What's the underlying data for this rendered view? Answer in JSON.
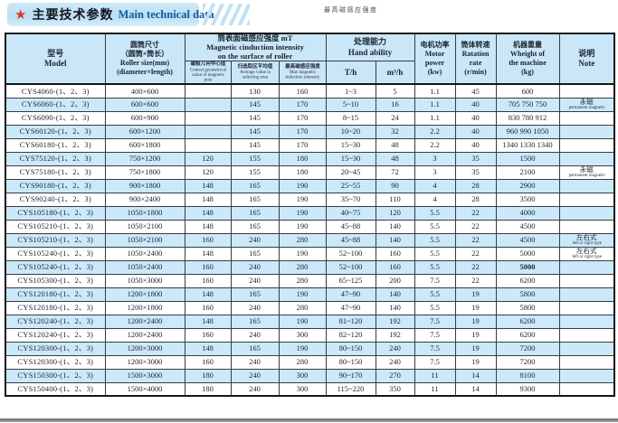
{
  "banner": {
    "star_icon": "★",
    "title_zh": "主要技术参数",
    "title_en": "Main technical data"
  },
  "floating_note": "最高磁感应强度",
  "table": {
    "headers": {
      "model": [
        "型号",
        "Model"
      ],
      "roller": [
        "圆筒尺寸",
        "（圆筒×筒长）",
        "Roller size(mm)",
        "(diameter×length)"
      ],
      "mag_group": [
        "筒表面磁感应强度 mT",
        "Magnetic cinduction intensity",
        "on the surface of roller"
      ],
      "mag_sub": [
        {
          "zh": "磁极几何中心值",
          "en_lines": [
            "Contral geometrical",
            "value of magnetic pole"
          ]
        },
        {
          "zh": "扫选取区平均值",
          "en_lines": [
            "Average value in",
            "selecting area"
          ]
        },
        {
          "zh": "最高磁感应强度",
          "en_lines": [
            "Max magnetic",
            "induction intensity"
          ]
        }
      ],
      "hand_group": [
        "处理能力",
        "Hand ability"
      ],
      "hand_sub": [
        "T/h",
        "m³/h"
      ],
      "motor": [
        "电机功率",
        "Motor",
        "power",
        "(kw)"
      ],
      "rate": [
        "筒体转速",
        "Ratation",
        "rate",
        "(r/min)"
      ],
      "weight": [
        "机器重量",
        "Wheight of",
        "the machine",
        "(kg)"
      ],
      "note": [
        "说明",
        "Note"
      ]
    },
    "rows": [
      {
        "model": "CYS4060-(1、2、3)",
        "size": "400×600",
        "mag_center": "",
        "mag_avg": "130",
        "mag_max": "160",
        "t_h": "1~3",
        "m3_h": "5",
        "power": "1.1",
        "rate": "45",
        "weight": "600",
        "weight_bold": false,
        "note_zh": "",
        "note_en": ""
      },
      {
        "model": "CYS6060-(1、2、3)",
        "size": "600×600",
        "mag_center": "",
        "mag_avg": "145",
        "mag_max": "170",
        "t_h": "5~10",
        "m3_h": "16",
        "power": "1.1",
        "rate": "40",
        "weight": "705 750 750",
        "weight_bold": false,
        "note_zh": "永磁",
        "note_en": "permanent magnetic"
      },
      {
        "model": "CYS6090-(1、2、3)",
        "size": "600×900",
        "mag_center": "",
        "mag_avg": "145",
        "mag_max": "170",
        "t_h": "8~15",
        "m3_h": "24",
        "power": "1.1",
        "rate": "40",
        "weight": "830 780 912",
        "weight_bold": false,
        "note_zh": "",
        "note_en": ""
      },
      {
        "model": "CYS60120-(1、2、3)",
        "size": "600×1200",
        "mag_center": "",
        "mag_avg": "145",
        "mag_max": "170",
        "t_h": "10~20",
        "m3_h": "32",
        "power": "2.2",
        "rate": "40",
        "weight": "960 990 1050",
        "weight_bold": false,
        "note_zh": "",
        "note_en": ""
      },
      {
        "model": "CYS60180-(1、2、3)",
        "size": "600×1800",
        "mag_center": "",
        "mag_avg": "145",
        "mag_max": "170",
        "t_h": "15~30",
        "m3_h": "48",
        "power": "2.2",
        "rate": "40",
        "weight": "1340 1330 1340",
        "weight_bold": false,
        "note_zh": "",
        "note_en": ""
      },
      {
        "model": "CYS75120-(1、2、3)",
        "size": "750×1200",
        "mag_center": "120",
        "mag_avg": "155",
        "mag_max": "180",
        "t_h": "15~30",
        "m3_h": "48",
        "power": "3",
        "rate": "35",
        "weight": "1500",
        "weight_bold": false,
        "note_zh": "",
        "note_en": ""
      },
      {
        "model": "CYS75180-(1、2、3)",
        "size": "750×1800",
        "mag_center": "120",
        "mag_avg": "155",
        "mag_max": "180",
        "t_h": "20~45",
        "m3_h": "72",
        "power": "3",
        "rate": "35",
        "weight": "2100",
        "weight_bold": false,
        "note_zh": "永磁",
        "note_en": "permanent magnetic"
      },
      {
        "model": "CYS90180-(1、2、3)",
        "size": "900×1800",
        "mag_center": "148",
        "mag_avg": "165",
        "mag_max": "190",
        "t_h": "25~55",
        "m3_h": "90",
        "power": "4",
        "rate": "28",
        "weight": "2900",
        "weight_bold": false,
        "note_zh": "",
        "note_en": ""
      },
      {
        "model": "CYS90240-(1、2、3)",
        "size": "900×2400",
        "mag_center": "148",
        "mag_avg": "165",
        "mag_max": "190",
        "t_h": "35~70",
        "m3_h": "110",
        "power": "4",
        "rate": "28",
        "weight": "3500",
        "weight_bold": false,
        "note_zh": "",
        "note_en": ""
      },
      {
        "model": "CYS105180-(1、2、3)",
        "size": "1050×1800",
        "mag_center": "148",
        "mag_avg": "165",
        "mag_max": "190",
        "t_h": "40~75",
        "m3_h": "120",
        "power": "5.5",
        "rate": "22",
        "weight": "4000",
        "weight_bold": false,
        "note_zh": "",
        "note_en": ""
      },
      {
        "model": "CYS105210-(1、2、3)",
        "size": "1050×2100",
        "mag_center": "148",
        "mag_avg": "165",
        "mag_max": "190",
        "t_h": "45~88",
        "m3_h": "140",
        "power": "5.5",
        "rate": "22",
        "weight": "4500",
        "weight_bold": false,
        "note_zh": "",
        "note_en": ""
      },
      {
        "model": "CYS105210-(1、2、3)",
        "size": "1050×2100",
        "mag_center": "160",
        "mag_avg": "240",
        "mag_max": "280",
        "t_h": "45~88",
        "m3_h": "140",
        "power": "5.5",
        "rate": "22",
        "weight": "4500",
        "weight_bold": false,
        "note_zh": "左右式",
        "note_en": "left or right type"
      },
      {
        "model": "CYS105240-(1、2、3)",
        "size": "1050×2400",
        "mag_center": "148",
        "mag_avg": "165",
        "mag_max": "190",
        "t_h": "52~100",
        "m3_h": "160",
        "power": "5.5",
        "rate": "22",
        "weight": "5000",
        "weight_bold": false,
        "note_zh": "左右式",
        "note_en": "left or right type"
      },
      {
        "model": "CYS105240-(1、2、3)",
        "size": "1050×2400",
        "mag_center": "160",
        "mag_avg": "240",
        "mag_max": "280",
        "t_h": "52~100",
        "m3_h": "160",
        "power": "5.5",
        "rate": "22",
        "weight": "5000",
        "weight_bold": true,
        "note_zh": "",
        "note_en": ""
      },
      {
        "model": "CYS105300-(1、2、3)",
        "size": "1050×3000",
        "mag_center": "160",
        "mag_avg": "240",
        "mag_max": "280",
        "t_h": "65~125",
        "m3_h": "200",
        "power": "7.5",
        "rate": "22",
        "weight": "6200",
        "weight_bold": false,
        "note_zh": "",
        "note_en": ""
      },
      {
        "model": "CYS120180-(1、2、3)",
        "size": "1200×1800",
        "mag_center": "148",
        "mag_avg": "165",
        "mag_max": "190",
        "t_h": "47~90",
        "m3_h": "140",
        "power": "5.5",
        "rate": "19",
        "weight": "5800",
        "weight_bold": false,
        "note_zh": "",
        "note_en": ""
      },
      {
        "model": "CYS120180-(1、2、3)",
        "size": "1200×1800",
        "mag_center": "160",
        "mag_avg": "240",
        "mag_max": "280",
        "t_h": "47~90",
        "m3_h": "140",
        "power": "5.5",
        "rate": "19",
        "weight": "5800",
        "weight_bold": false,
        "note_zh": "",
        "note_en": ""
      },
      {
        "model": "CYS120240-(1、2、3)",
        "size": "1200×2400",
        "mag_center": "148",
        "mag_avg": "165",
        "mag_max": "190",
        "t_h": "81~120",
        "m3_h": "192",
        "power": "7.5",
        "rate": "19",
        "weight": "6200",
        "weight_bold": false,
        "note_zh": "",
        "note_en": ""
      },
      {
        "model": "CYS120240-(1、2、3)",
        "size": "1200×2400",
        "mag_center": "160",
        "mag_avg": "240",
        "mag_max": "300",
        "t_h": "82~120",
        "m3_h": "192",
        "power": "7.5",
        "rate": "19",
        "weight": "6200",
        "weight_bold": false,
        "note_zh": "",
        "note_en": ""
      },
      {
        "model": "CYS120300-(1、2、3)",
        "size": "1200×3000",
        "mag_center": "148",
        "mag_avg": "165",
        "mag_max": "190",
        "t_h": "80~150",
        "m3_h": "240",
        "power": "7.5",
        "rate": "19",
        "weight": "7200",
        "weight_bold": false,
        "note_zh": "",
        "note_en": ""
      },
      {
        "model": "CYS120300-(1、2、3)",
        "size": "1200×3000",
        "mag_center": "160",
        "mag_avg": "240",
        "mag_max": "280",
        "t_h": "80~150",
        "m3_h": "240",
        "power": "7.5",
        "rate": "19",
        "weight": "7200",
        "weight_bold": false,
        "note_zh": "",
        "note_en": ""
      },
      {
        "model": "CYS150300-(1、2、3)",
        "size": "1500×3000",
        "mag_center": "180",
        "mag_avg": "240",
        "mag_max": "300",
        "t_h": "90~170",
        "m3_h": "270",
        "power": "11",
        "rate": "14",
        "weight": "8100",
        "weight_bold": false,
        "note_zh": "",
        "note_en": ""
      },
      {
        "model": "CYS150400-(1、2、3)",
        "size": "1500×4000",
        "mag_center": "180",
        "mag_avg": "240",
        "mag_max": "300",
        "t_h": "115~220",
        "m3_h": "350",
        "power": "11",
        "rate": "14",
        "weight": "9300",
        "weight_bold": false,
        "note_zh": "",
        "note_en": ""
      }
    ]
  },
  "colors": {
    "stripe_blue": "#cbe9f8",
    "header_blue": "#c9e7f6",
    "banner_blue": "#c3e4f4",
    "accent_red": "#e63329",
    "accent_blue": "#1558a0",
    "border_dark": "#15151c"
  }
}
